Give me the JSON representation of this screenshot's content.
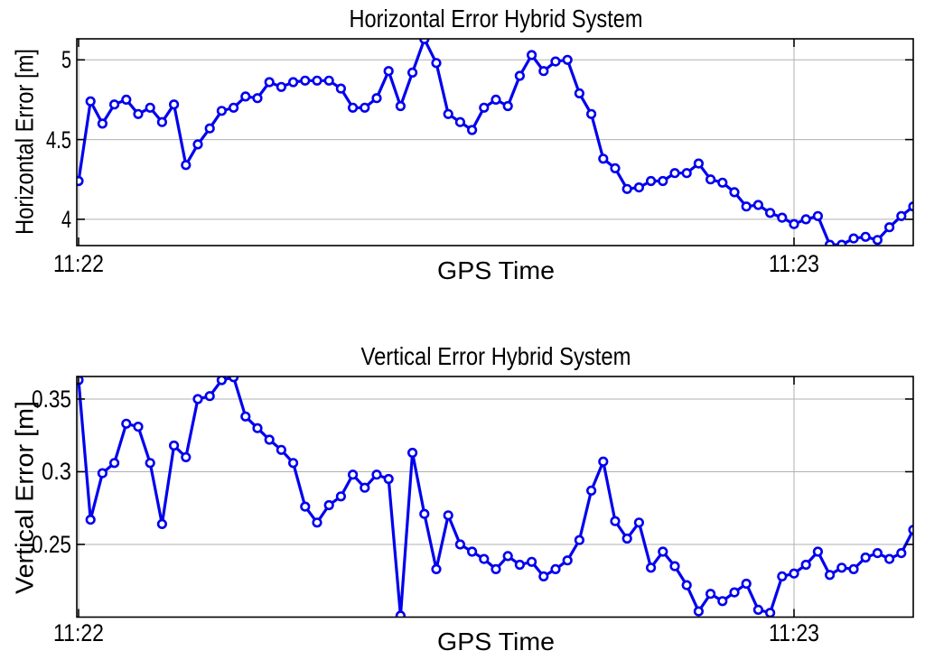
{
  "figure": {
    "background": "#ffffff",
    "accent_color": "#0000ee",
    "grid_color": "#b0b0b0",
    "axis_color": "#000000"
  },
  "chart_data": [
    {
      "type": "line",
      "title": "Horizontal Error Hybrid System",
      "xlabel": "GPS Time",
      "ylabel": "Horizontal Error [m]",
      "legend": null,
      "grid": true,
      "line_color": "#0000ee",
      "marker": "open-circle",
      "x_step_seconds": 1,
      "xlim_seconds": [
        0,
        70
      ],
      "x_ticks": [
        {
          "s": 0,
          "label": "11:22"
        },
        {
          "s": 60,
          "label": "11:23"
        }
      ],
      "y_ticks": [
        {
          "v": 5,
          "label": "5"
        },
        {
          "v": 4.5,
          "label": "4.5"
        },
        {
          "v": 4,
          "label": "4"
        }
      ],
      "ylim": [
        3.835,
        5.132
      ],
      "values": [
        4.24,
        4.74,
        4.6,
        4.72,
        4.75,
        4.66,
        4.7,
        4.61,
        4.72,
        4.34,
        4.47,
        4.57,
        4.68,
        4.7,
        4.77,
        4.76,
        4.86,
        4.83,
        4.86,
        4.87,
        4.87,
        4.87,
        4.82,
        4.7,
        4.7,
        4.76,
        4.93,
        4.71,
        4.92,
        5.13,
        4.98,
        4.66,
        4.61,
        4.56,
        4.7,
        4.75,
        4.71,
        4.9,
        5.03,
        4.93,
        4.99,
        5.0,
        4.79,
        4.66,
        4.38,
        4.32,
        4.19,
        4.2,
        4.24,
        4.24,
        4.29,
        4.29,
        4.35,
        4.25,
        4.23,
        4.17,
        4.08,
        4.09,
        4.04,
        4.01,
        3.97,
        4.0,
        4.02,
        3.84,
        3.84,
        3.88,
        3.89,
        3.87,
        3.95,
        4.02,
        4.08
      ]
    },
    {
      "type": "line",
      "title": "Vertical Error Hybrid System",
      "xlabel": "GPS Time",
      "ylabel": "Vertical Error [m]",
      "legend": null,
      "grid": true,
      "line_color": "#0000ee",
      "marker": "open-circle",
      "x_step_seconds": 1,
      "xlim_seconds": [
        0,
        70
      ],
      "x_ticks": [
        {
          "s": 0,
          "label": "11:22"
        },
        {
          "s": 60,
          "label": "11:23"
        }
      ],
      "y_ticks": [
        {
          "v": 0.35,
          "label": "0.35"
        },
        {
          "v": 0.3,
          "label": "0.3"
        },
        {
          "v": 0.25,
          "label": "0.25"
        }
      ],
      "ylim": [
        0.2,
        0.3655
      ],
      "values": [
        0.363,
        0.267,
        0.299,
        0.306,
        0.333,
        0.331,
        0.306,
        0.264,
        0.318,
        0.31,
        0.35,
        0.352,
        0.363,
        0.365,
        0.338,
        0.33,
        0.322,
        0.315,
        0.306,
        0.276,
        0.265,
        0.277,
        0.283,
        0.298,
        0.289,
        0.298,
        0.295,
        0.201,
        0.313,
        0.271,
        0.233,
        0.27,
        0.25,
        0.245,
        0.24,
        0.233,
        0.242,
        0.236,
        0.238,
        0.228,
        0.233,
        0.239,
        0.253,
        0.287,
        0.307,
        0.266,
        0.254,
        0.265,
        0.234,
        0.245,
        0.235,
        0.222,
        0.204,
        0.216,
        0.211,
        0.217,
        0.223,
        0.205,
        0.203,
        0.228,
        0.23,
        0.236,
        0.245,
        0.229,
        0.234,
        0.233,
        0.241,
        0.244,
        0.24,
        0.244,
        0.26
      ]
    }
  ]
}
